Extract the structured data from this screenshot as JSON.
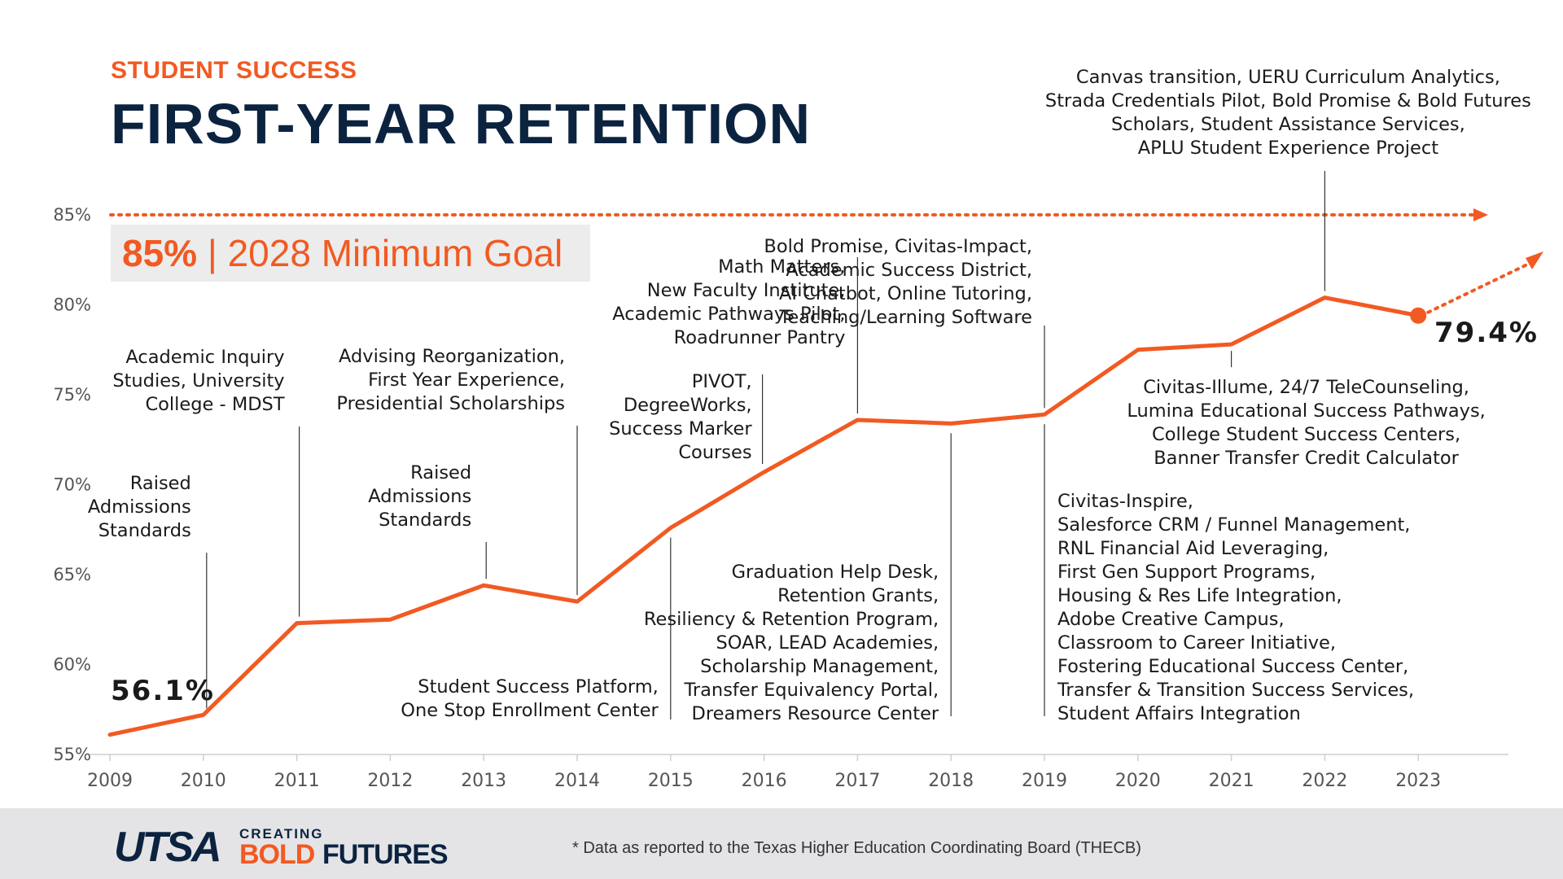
{
  "header": {
    "kicker": "STUDENT SUCCESS",
    "title": "FIRST-YEAR RETENTION"
  },
  "goal": {
    "value": "85%",
    "separator": "|",
    "label": "2028 Minimum Goal"
  },
  "chart_data": {
    "type": "line",
    "x": [
      2009,
      2010,
      2011,
      2012,
      2013,
      2014,
      2015,
      2016,
      2017,
      2018,
      2019,
      2020,
      2021,
      2022,
      2023
    ],
    "values": [
      56.1,
      57.2,
      62.3,
      62.5,
      64.4,
      63.5,
      67.6,
      70.7,
      73.6,
      73.4,
      73.9,
      77.5,
      77.8,
      80.4,
      79.4
    ],
    "xlim": [
      2009,
      2024
    ],
    "ylim": [
      55,
      85
    ],
    "yticks": [
      55,
      60,
      65,
      70,
      75,
      80,
      85
    ],
    "ytick_labels": [
      "55%",
      "60%",
      "65%",
      "70%",
      "75%",
      "80%",
      "85%"
    ],
    "goal_value": 85,
    "projection_end": [
      2024,
      82.6
    ],
    "start_label": "56.1%",
    "end_label": "79.4%",
    "line_color": "#f15a22",
    "grid": false,
    "annotations": [
      {
        "year": 2010,
        "position": "above",
        "lines": [
          "Raised",
          "Admissions",
          "Standards"
        ]
      },
      {
        "year": 2011,
        "position": "above",
        "lines": [
          "Academic Inquiry",
          "Studies, University",
          "College - MDST"
        ]
      },
      {
        "year": 2013,
        "position": "above",
        "lines": [
          "Raised",
          "Admissions",
          "Standards"
        ]
      },
      {
        "year": 2014,
        "position": "above",
        "lines": [
          "Advising Reorganization,",
          "First Year Experience,",
          "Presidential Scholarships"
        ]
      },
      {
        "year": 2015,
        "position": "below",
        "lines": [
          "Student Success Platform,",
          "One Stop Enrollment Center"
        ]
      },
      {
        "year": 2016,
        "position": "above",
        "lines": [
          "PIVOT,",
          "DegreeWorks,",
          "Success Marker",
          "Courses"
        ]
      },
      {
        "year": 2017,
        "position": "above",
        "lines": [
          "Math Matters,",
          "New Faculty Institute,",
          "Academic Pathways Pilot,",
          "Roadrunner Pantry"
        ]
      },
      {
        "year": 2018,
        "position": "below",
        "lines": [
          "Graduation Help Desk,",
          "Retention Grants,",
          "Resiliency & Retention Program,",
          "SOAR, LEAD Academies,",
          "Scholarship Management,",
          "Transfer Equivalency Portal,",
          "Dreamers Resource Center"
        ]
      },
      {
        "year": 2019,
        "position": "above",
        "lines": [
          "Bold Promise, Civitas-Impact,",
          "Academic Success District,",
          "AI Chatbot, Online Tutoring,",
          "Teaching/Learning Software"
        ]
      },
      {
        "year": 2019,
        "position": "below",
        "lines": [
          "Civitas-Inspire,",
          "Salesforce CRM / Funnel Management,",
          "RNL Financial Aid Leveraging,",
          "First Gen Support Programs,",
          "Housing & Res Life Integration,",
          "Adobe Creative Campus,",
          "Classroom to Career Initiative,",
          "Fostering Educational Success Center,",
          "Transfer & Transition Success Services,",
          "Student Affairs Integration"
        ]
      },
      {
        "year": 2021,
        "position": "below",
        "lines": [
          "Civitas-Illume, 24/7 TeleCounseling,",
          "Lumina Educational Success Pathways,",
          "College Student Success Centers,",
          "Banner Transfer Credit Calculator"
        ]
      },
      {
        "year": 2022,
        "position": "above",
        "lines": [
          "Canvas transition, UERU Curriculum Analytics,",
          "Strada Credentials Pilot, Bold Promise & Bold Futures",
          "Scholars, Student Assistance Services,",
          "APLU Student Experience Project"
        ]
      }
    ]
  },
  "footer": {
    "logo_main": "UTSA",
    "logo_creating": "CREATING",
    "logo_bold": "BOLD",
    "logo_futures": "FUTURES",
    "footnote": "* Data as reported to the Texas Higher Education Coordinating Board (THECB)"
  }
}
